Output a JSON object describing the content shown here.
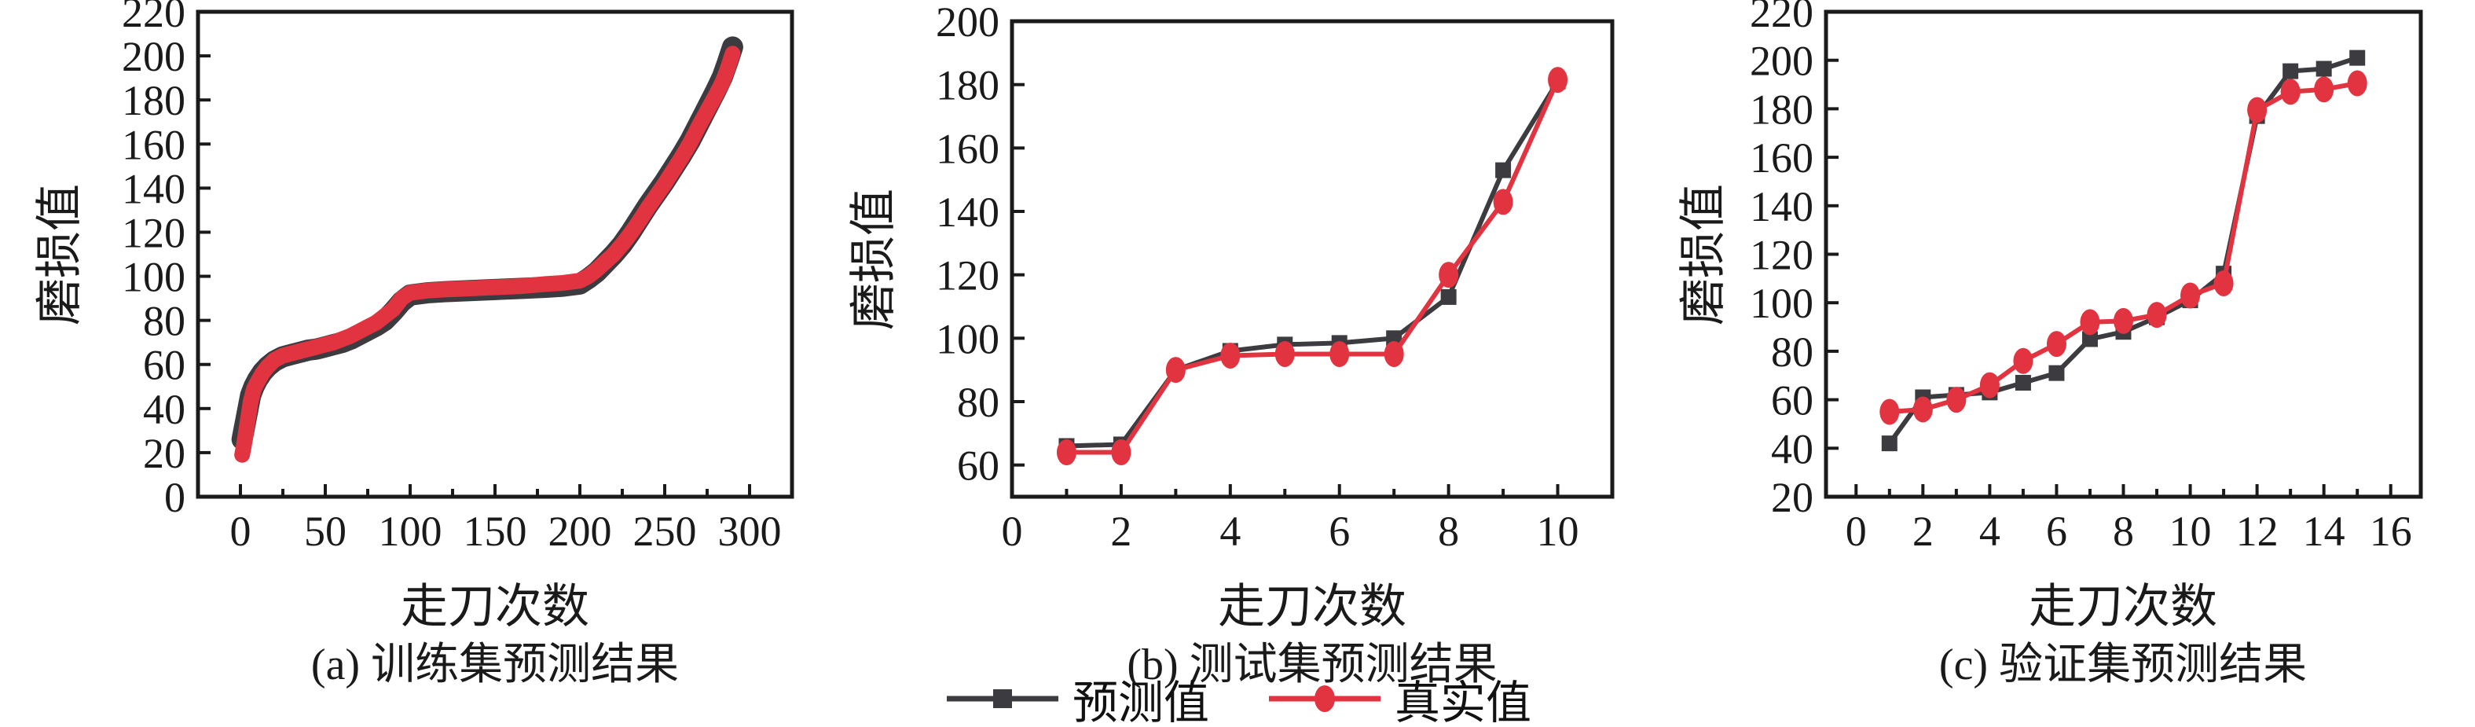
{
  "figure": {
    "background": "#ffffff",
    "frame_color": "#1a1a1a",
    "predicted_color": "#3c3c40",
    "actual_color": "#e23440"
  },
  "legend": {
    "items": [
      {
        "label": "预测值",
        "color": "#3c3c40",
        "marker": "square"
      },
      {
        "label": "真实值",
        "color": "#e23440",
        "marker": "circle"
      }
    ]
  },
  "chart_data": [
    {
      "type": "line",
      "title": "(a) 训练集预测结果",
      "xlabel": "走刀次数",
      "ylabel": "磨损值",
      "xlim": [
        -25,
        325
      ],
      "ylim": [
        0,
        220
      ],
      "xticks": [
        0,
        50,
        100,
        150,
        200,
        250,
        300
      ],
      "xminor_step": 25,
      "yticks": [
        0,
        20,
        40,
        60,
        80,
        100,
        120,
        140,
        160,
        180,
        200,
        220
      ],
      "grid": false,
      "x": [
        1,
        2,
        3,
        4,
        5,
        6,
        8,
        10,
        13,
        16,
        20,
        25,
        30,
        35,
        40,
        45,
        50,
        55,
        60,
        65,
        70,
        75,
        80,
        85,
        90,
        95,
        100,
        110,
        120,
        135,
        150,
        165,
        180,
        190,
        200,
        205,
        210,
        215,
        220,
        225,
        230,
        235,
        240,
        245,
        250,
        255,
        260,
        265,
        270,
        275,
        280,
        284,
        287,
        290
      ],
      "series": [
        {
          "name": "预测值",
          "color": "#3c3c40",
          "marker": "none",
          "values": [
            26,
            30,
            34,
            38,
            42,
            46,
            50,
            53,
            56.5,
            59,
            61.5,
            63.5,
            64.5,
            65.5,
            66.5,
            67,
            68,
            69,
            70,
            71.5,
            73.5,
            75.5,
            77.5,
            80,
            84,
            88.5,
            91.5,
            92.5,
            93,
            93.5,
            94,
            94.5,
            95,
            95.5,
            96.5,
            99,
            102,
            106,
            110,
            114.5,
            120,
            126,
            132,
            137.5,
            143,
            149,
            155,
            161.5,
            169,
            176.5,
            184,
            190.5,
            197,
            204
          ]
        },
        {
          "name": "真实值",
          "color": "#e23440",
          "marker": "none",
          "values": [
            19,
            23,
            28,
            33,
            38,
            43,
            49,
            52,
            56,
            59,
            62,
            64,
            65,
            66,
            67,
            68,
            69,
            70,
            71.5,
            73,
            75,
            77,
            79,
            82,
            85,
            90,
            92.5,
            93.5,
            94,
            94.5,
            95,
            95.5,
            96.5,
            97,
            98,
            100,
            103,
            106.5,
            110,
            114.5,
            119.5,
            125,
            131,
            136.5,
            142,
            148,
            154,
            160.5,
            168,
            175,
            182,
            188,
            194,
            201
          ]
        }
      ]
    },
    {
      "type": "line",
      "title": "(b) 测试集预测结果",
      "xlabel": "走刀次数",
      "ylabel": "磨损值",
      "xlim": [
        0,
        11
      ],
      "ylim": [
        50,
        200
      ],
      "xticks": [
        0,
        2,
        4,
        6,
        8,
        10
      ],
      "xminor_step": 1,
      "yticks": [
        60,
        80,
        100,
        120,
        140,
        160,
        180,
        200
      ],
      "grid": false,
      "x": [
        1,
        2,
        3,
        4,
        5,
        6,
        7,
        8,
        9,
        10
      ],
      "series": [
        {
          "name": "预测值",
          "color": "#3c3c40",
          "marker": "square",
          "values": [
            66,
            66.5,
            90,
            96,
            98,
            98.5,
            100,
            113,
            153,
            181
          ]
        },
        {
          "name": "真实值",
          "color": "#e23440",
          "marker": "circle",
          "values": [
            64,
            64,
            90,
            94.5,
            95,
            95,
            95,
            120,
            143,
            181.5
          ]
        }
      ]
    },
    {
      "type": "line",
      "title": "(c) 验证集预测结果",
      "xlabel": "走刀次数",
      "ylabel": "磨损值",
      "xlim": [
        -0.9,
        16.9
      ],
      "ylim": [
        20,
        220
      ],
      "xticks": [
        0,
        2,
        4,
        6,
        8,
        10,
        12,
        14,
        16
      ],
      "xminor_step": 1,
      "yticks": [
        20,
        40,
        60,
        80,
        100,
        120,
        140,
        160,
        180,
        200,
        220
      ],
      "grid": false,
      "x": [
        1,
        2,
        3,
        4,
        5,
        6,
        7,
        8,
        9,
        10,
        11,
        12,
        13,
        14,
        15
      ],
      "series": [
        {
          "name": "预测值",
          "color": "#3c3c40",
          "marker": "square",
          "values": [
            42,
            61,
            62,
            63,
            67,
            71,
            85,
            88,
            94,
            101,
            112,
            177,
            195.5,
            196.5,
            201
          ]
        },
        {
          "name": "真实值",
          "color": "#e23440",
          "marker": "circle",
          "values": [
            55,
            56,
            60,
            66,
            76,
            83,
            92,
            92.5,
            95,
            103,
            108,
            179.5,
            187,
            188,
            190.5
          ]
        }
      ]
    }
  ]
}
